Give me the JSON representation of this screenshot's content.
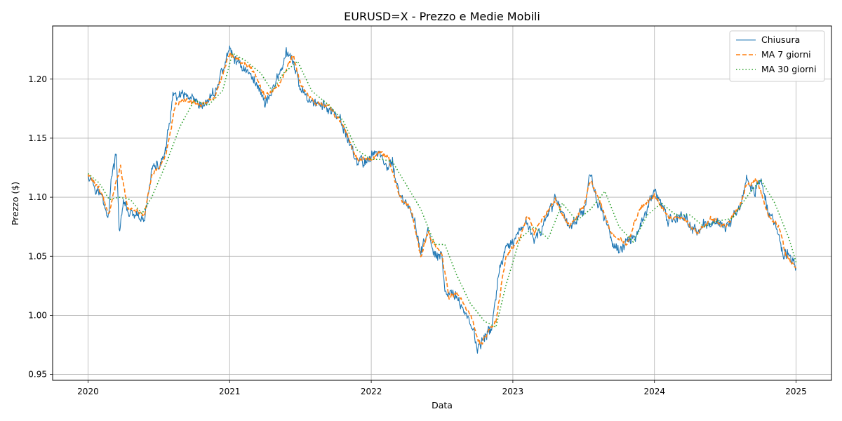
{
  "chart_data": {
    "type": "line",
    "title": "EURUSD=X - Prezzo e Medie Mobili",
    "xlabel": "Data",
    "ylabel": "Prezzo ($)",
    "xlim": [
      2019.75,
      2025.25
    ],
    "ylim": [
      0.945,
      1.245
    ],
    "x_ticks": [
      2020,
      2021,
      2022,
      2023,
      2024,
      2025
    ],
    "x_tick_labels": [
      "2020",
      "2021",
      "2022",
      "2023",
      "2024",
      "2025"
    ],
    "y_ticks": [
      0.95,
      1.0,
      1.05,
      1.1,
      1.15,
      1.2
    ],
    "y_tick_labels": [
      "0.95",
      "1.00",
      "1.05",
      "1.10",
      "1.15",
      "1.20"
    ],
    "grid": true,
    "legend_position": "top-right",
    "series": [
      {
        "name": "Chiusura",
        "color": "#1f77b4",
        "style": "solid",
        "noise": 0.006,
        "x": [
          2020.0,
          2020.05,
          2020.1,
          2020.14,
          2020.17,
          2020.2,
          2020.22,
          2020.25,
          2020.3,
          2020.35,
          2020.4,
          2020.45,
          2020.5,
          2020.55,
          2020.6,
          2020.7,
          2020.8,
          2020.9,
          2021.0,
          2021.05,
          2021.1,
          2021.2,
          2021.25,
          2021.3,
          2021.35,
          2021.4,
          2021.45,
          2021.5,
          2021.6,
          2021.7,
          2021.8,
          2021.9,
          2021.95,
          2022.0,
          2022.05,
          2022.1,
          2022.15,
          2022.2,
          2022.25,
          2022.3,
          2022.35,
          2022.4,
          2022.45,
          2022.5,
          2022.52,
          2022.58,
          2022.65,
          2022.7,
          2022.75,
          2022.8,
          2022.85,
          2022.9,
          2022.95,
          2023.0,
          2023.05,
          2023.1,
          2023.15,
          2023.2,
          2023.3,
          2023.4,
          2023.5,
          2023.55,
          2023.6,
          2023.7,
          2023.75,
          2023.85,
          2023.95,
          2024.0,
          2024.1,
          2024.2,
          2024.3,
          2024.4,
          2024.5,
          2024.6,
          2024.65,
          2024.7,
          2024.75,
          2024.8,
          2024.85,
          2024.9,
          2024.95,
          2025.0
        ],
        "y": [
          1.121,
          1.11,
          1.1,
          1.082,
          1.12,
          1.135,
          1.072,
          1.095,
          1.085,
          1.082,
          1.08,
          1.125,
          1.125,
          1.14,
          1.185,
          1.185,
          1.175,
          1.19,
          1.225,
          1.215,
          1.21,
          1.195,
          1.18,
          1.19,
          1.205,
          1.22,
          1.215,
          1.19,
          1.18,
          1.175,
          1.16,
          1.13,
          1.13,
          1.135,
          1.14,
          1.125,
          1.13,
          1.1,
          1.095,
          1.08,
          1.055,
          1.07,
          1.05,
          1.05,
          1.015,
          1.02,
          1.005,
          0.995,
          0.972,
          0.98,
          0.99,
          1.035,
          1.055,
          1.06,
          1.07,
          1.08,
          1.065,
          1.07,
          1.1,
          1.075,
          1.09,
          1.12,
          1.095,
          1.065,
          1.055,
          1.065,
          1.09,
          1.105,
          1.08,
          1.085,
          1.07,
          1.08,
          1.075,
          1.09,
          1.115,
          1.105,
          1.115,
          1.09,
          1.08,
          1.055,
          1.05,
          1.04
        ]
      },
      {
        "name": "MA 7 giorni",
        "color": "#ff7f0e",
        "style": "dashed",
        "noise": 0.0025,
        "x": [
          2020.0,
          2020.05,
          2020.1,
          2020.15,
          2020.2,
          2020.23,
          2020.28,
          2020.35,
          2020.4,
          2020.45,
          2020.5,
          2020.55,
          2020.62,
          2020.7,
          2020.8,
          2020.9,
          2021.0,
          2021.08,
          2021.15,
          2021.25,
          2021.35,
          2021.45,
          2021.5,
          2021.6,
          2021.7,
          2021.8,
          2021.9,
          2022.0,
          2022.05,
          2022.12,
          2022.2,
          2022.28,
          2022.35,
          2022.4,
          2022.5,
          2022.55,
          2022.6,
          2022.7,
          2022.77,
          2022.82,
          2022.88,
          2022.95,
          2023.05,
          2023.1,
          2023.15,
          2023.3,
          2023.4,
          2023.5,
          2023.55,
          2023.62,
          2023.7,
          2023.8,
          2023.9,
          2024.0,
          2024.1,
          2024.2,
          2024.3,
          2024.4,
          2024.5,
          2024.6,
          2024.65,
          2024.72,
          2024.8,
          2024.88,
          2024.93,
          2025.0
        ],
        "y": [
          1.119,
          1.112,
          1.102,
          1.085,
          1.115,
          1.125,
          1.09,
          1.088,
          1.085,
          1.12,
          1.125,
          1.135,
          1.18,
          1.182,
          1.178,
          1.185,
          1.222,
          1.215,
          1.21,
          1.185,
          1.195,
          1.22,
          1.195,
          1.18,
          1.178,
          1.16,
          1.132,
          1.132,
          1.138,
          1.135,
          1.1,
          1.09,
          1.05,
          1.07,
          1.05,
          1.015,
          1.02,
          1.0,
          0.975,
          0.985,
          0.995,
          1.05,
          1.065,
          1.085,
          1.07,
          1.098,
          1.075,
          1.092,
          1.115,
          1.095,
          1.068,
          1.06,
          1.09,
          1.102,
          1.082,
          1.083,
          1.07,
          1.082,
          1.075,
          1.092,
          1.11,
          1.115,
          1.085,
          1.075,
          1.05,
          1.04
        ]
      },
      {
        "name": "MA 30 giorni",
        "color": "#2ca02c",
        "style": "dotted",
        "noise": 0.0,
        "x": [
          2020.0,
          2020.08,
          2020.15,
          2020.22,
          2020.3,
          2020.38,
          2020.45,
          2020.55,
          2020.65,
          2020.75,
          2020.85,
          2020.95,
          2021.02,
          2021.12,
          2021.22,
          2021.3,
          2021.38,
          2021.48,
          2021.58,
          2021.7,
          2021.8,
          2021.9,
          2022.0,
          2022.08,
          2022.15,
          2022.25,
          2022.35,
          2022.45,
          2022.52,
          2022.6,
          2022.7,
          2022.8,
          2022.88,
          2022.95,
          2023.05,
          2023.15,
          2023.25,
          2023.35,
          2023.45,
          2023.55,
          2023.65,
          2023.75,
          2023.85,
          2023.95,
          2024.05,
          2024.15,
          2024.25,
          2024.35,
          2024.45,
          2024.55,
          2024.65,
          2024.75,
          2024.85,
          2024.95,
          2025.0
        ],
        "y": [
          1.12,
          1.112,
          1.098,
          1.1,
          1.098,
          1.086,
          1.1,
          1.128,
          1.16,
          1.182,
          1.178,
          1.19,
          1.222,
          1.215,
          1.205,
          1.19,
          1.205,
          1.215,
          1.19,
          1.178,
          1.165,
          1.14,
          1.132,
          1.132,
          1.13,
          1.11,
          1.09,
          1.06,
          1.06,
          1.035,
          1.01,
          0.995,
          0.99,
          1.025,
          1.065,
          1.075,
          1.065,
          1.095,
          1.08,
          1.09,
          1.105,
          1.075,
          1.062,
          1.085,
          1.095,
          1.085,
          1.085,
          1.075,
          1.08,
          1.082,
          1.1,
          1.115,
          1.095,
          1.065,
          1.045
        ]
      }
    ]
  }
}
